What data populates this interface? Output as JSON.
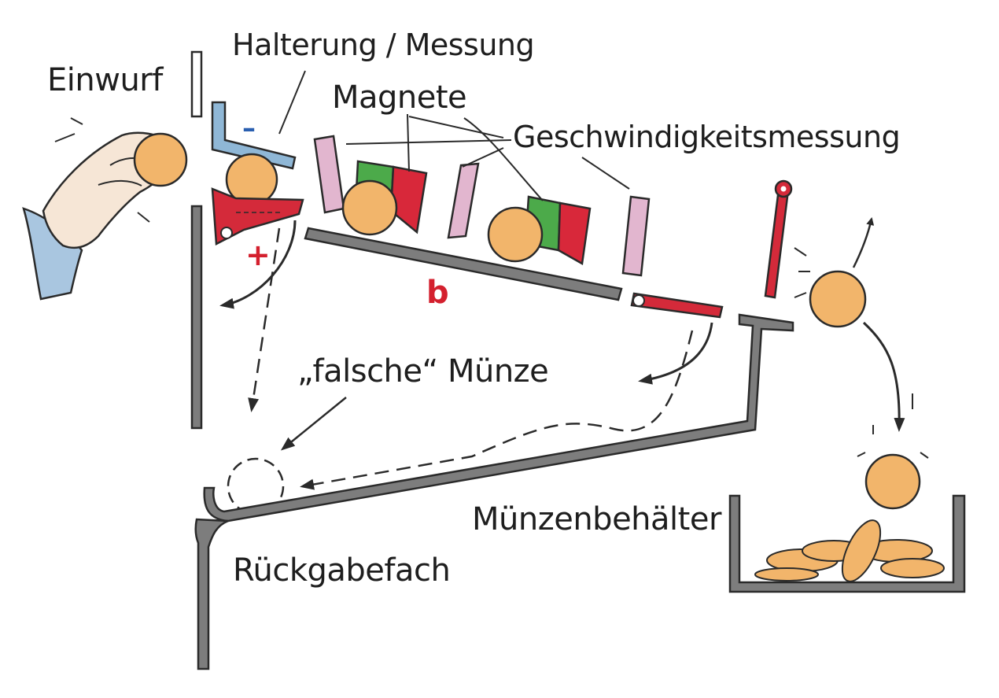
{
  "labels": {
    "einwurf": "Einwurf",
    "halterung": "Halterung / Messung",
    "magnete": "Magnete",
    "geschwindigkeit": "Geschwindigkeitsmessung",
    "falsche_muenze": "„falsche“ Münze",
    "rueckgabefach": "Rückgabefach",
    "muenzenbehaelter": "Münzenbehälter"
  },
  "symbols": {
    "minus": "–",
    "plus": "+",
    "b": "b"
  },
  "colors": {
    "coin": "#f2b56b",
    "coin_outline": "#2a2a2a",
    "rail": "#7d7d7d",
    "red_part": "#d42a3a",
    "blue_part": "#8fb7d6",
    "pink_sensor": "#e2b6cf",
    "magnet_green": "#4caa4a",
    "magnet_red": "#d8283a",
    "hand": "#f6e6d6",
    "sleeve": "#a9c6e0",
    "symbol_red": "#d4202e",
    "symbol_blue": "#2a5fb0"
  },
  "icons": [
    "hand-icon",
    "coin-icon",
    "magnet-icon",
    "sensor-icon",
    "gate-icon",
    "arrow-icon"
  ]
}
